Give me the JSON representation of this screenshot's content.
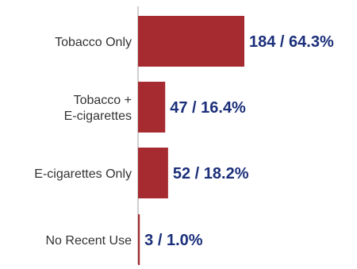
{
  "chart_data": {
    "type": "bar",
    "orientation": "horizontal",
    "categories": [
      [
        "Tobacco Only"
      ],
      [
        "Tobacco +",
        "E-cigarettes"
      ],
      [
        "E-cigarettes Only"
      ],
      [
        "No Recent Use"
      ]
    ],
    "values": [
      184,
      47,
      52,
      3
    ],
    "percents": [
      64.3,
      16.4,
      18.2,
      1.0
    ],
    "data_labels": [
      "184 / 64.3%",
      "47 / 16.4%",
      "52 / 18.2%",
      "3 / 1.0%"
    ],
    "title": "",
    "xlabel": "",
    "ylabel": "",
    "xlim": [
      0,
      184
    ],
    "grid": false,
    "legend": "none",
    "colors": {
      "bar": "#a52b31",
      "data_label": "#1b2f7a",
      "axis": "#bfbfbf"
    }
  }
}
